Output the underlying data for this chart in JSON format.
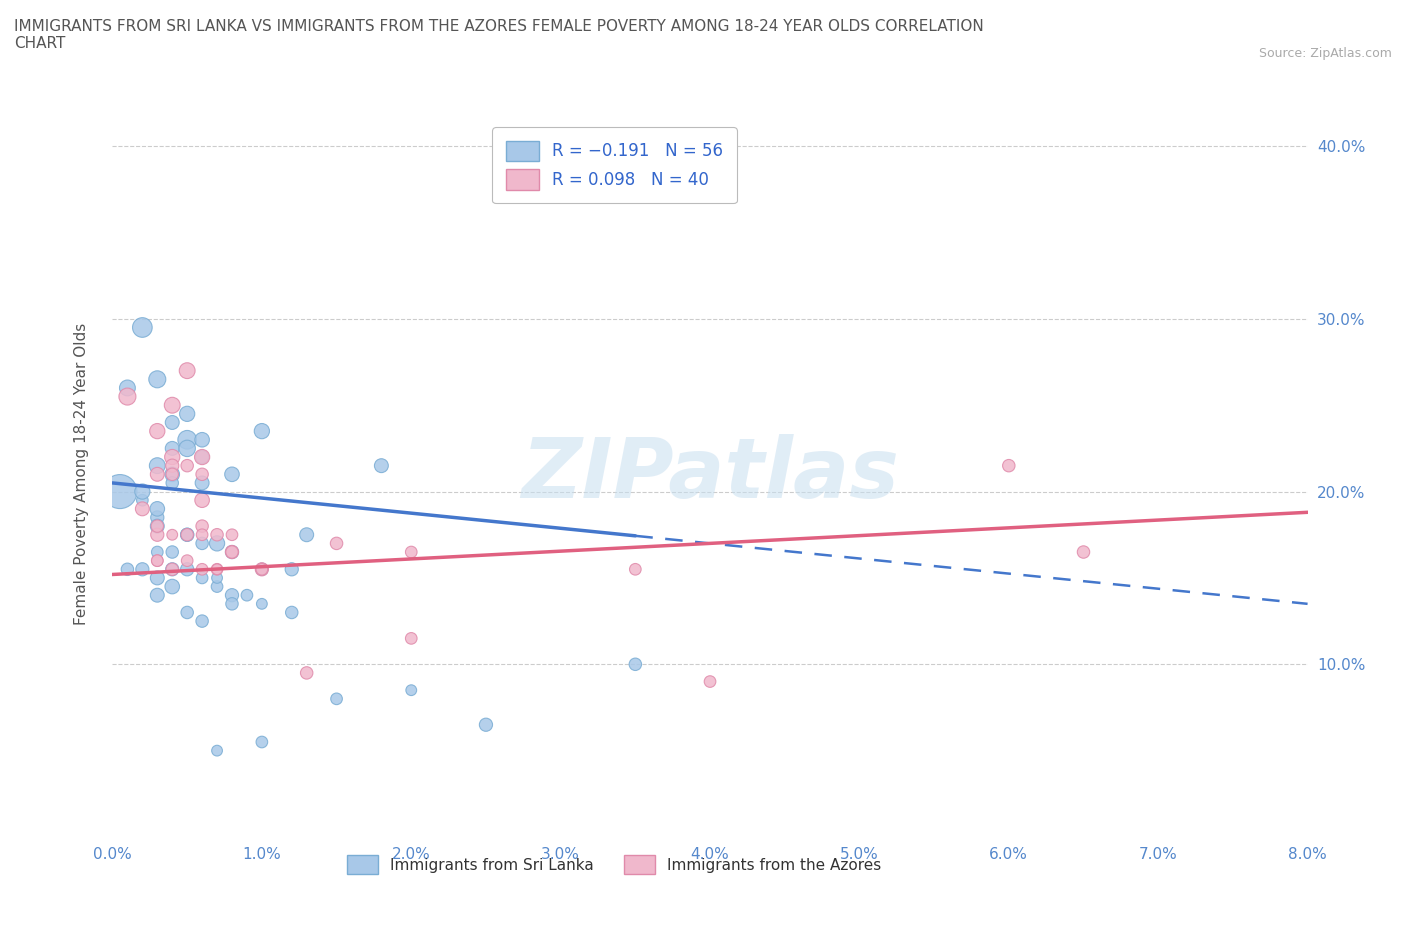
{
  "title": "IMMIGRANTS FROM SRI LANKA VS IMMIGRANTS FROM THE AZORES FEMALE POVERTY AMONG 18-24 YEAR OLDS CORRELATION\nCHART",
  "source_text": "Source: ZipAtlas.com",
  "ylabel": "Female Poverty Among 18-24 Year Olds",
  "xlim": [
    0.0,
    0.08
  ],
  "ylim": [
    0.0,
    0.42
  ],
  "xticks": [
    0.0,
    0.01,
    0.02,
    0.03,
    0.04,
    0.05,
    0.06,
    0.07,
    0.08
  ],
  "yticks": [
    0.1,
    0.2,
    0.3,
    0.4
  ],
  "xticklabels": [
    "0.0%",
    "1.0%",
    "2.0%",
    "3.0%",
    "4.0%",
    "5.0%",
    "6.0%",
    "7.0%",
    "8.0%"
  ],
  "yticklabels_right": [
    "10.0%",
    "20.0%",
    "30.0%",
    "40.0%"
  ],
  "sri_lanka_color": "#a8c8e8",
  "sri_lanka_edge": "#7aadd4",
  "azores_color": "#f0b8cc",
  "azores_edge": "#e08aaa",
  "tick_color": "#5588cc",
  "watermark": "ZIPatlas",
  "sl_line_color": "#4477cc",
  "sl_line_solid_end": 0.035,
  "az_line_color": "#e06080",
  "sl_line_y0": 0.205,
  "sl_line_y1": 0.135,
  "sl_line_x0": 0.0,
  "sl_line_x1": 0.08,
  "az_line_y0": 0.152,
  "az_line_y1": 0.188,
  "az_line_x0": 0.0,
  "az_line_x1": 0.08,
  "sri_lanka_x": [
    0.0005,
    0.002,
    0.003,
    0.005,
    0.005,
    0.004,
    0.006,
    0.003,
    0.004,
    0.005,
    0.004,
    0.002,
    0.001,
    0.003,
    0.004,
    0.006,
    0.007,
    0.004,
    0.005,
    0.006,
    0.008,
    0.01,
    0.013,
    0.008,
    0.018,
    0.002,
    0.003,
    0.003,
    0.005,
    0.006,
    0.003,
    0.001,
    0.002,
    0.003,
    0.004,
    0.005,
    0.006,
    0.007,
    0.008,
    0.01,
    0.012,
    0.003,
    0.004,
    0.005,
    0.006,
    0.007,
    0.008,
    0.009,
    0.01,
    0.012,
    0.015,
    0.02,
    0.025,
    0.035,
    0.01,
    0.007
  ],
  "sri_lanka_y": [
    0.2,
    0.295,
    0.265,
    0.245,
    0.23,
    0.225,
    0.22,
    0.215,
    0.21,
    0.225,
    0.205,
    0.195,
    0.26,
    0.185,
    0.24,
    0.23,
    0.17,
    0.165,
    0.175,
    0.205,
    0.21,
    0.235,
    0.175,
    0.165,
    0.215,
    0.2,
    0.19,
    0.18,
    0.175,
    0.17,
    0.165,
    0.155,
    0.155,
    0.15,
    0.145,
    0.155,
    0.125,
    0.145,
    0.14,
    0.155,
    0.155,
    0.14,
    0.155,
    0.13,
    0.15,
    0.15,
    0.135,
    0.14,
    0.135,
    0.13,
    0.08,
    0.085,
    0.065,
    0.1,
    0.055,
    0.05
  ],
  "sri_lanka_sizes": [
    600,
    200,
    150,
    120,
    180,
    100,
    90,
    130,
    110,
    140,
    80,
    70,
    130,
    90,
    100,
    110,
    120,
    80,
    90,
    100,
    110,
    120,
    100,
    90,
    100,
    120,
    110,
    100,
    90,
    80,
    70,
    80,
    90,
    100,
    110,
    90,
    80,
    70,
    90,
    80,
    90,
    100,
    90,
    80,
    70,
    60,
    80,
    70,
    60,
    80,
    70,
    60,
    90,
    80,
    70,
    60
  ],
  "azores_x": [
    0.001,
    0.004,
    0.003,
    0.005,
    0.006,
    0.004,
    0.006,
    0.003,
    0.002,
    0.004,
    0.005,
    0.006,
    0.004,
    0.005,
    0.008,
    0.006,
    0.01,
    0.015,
    0.02,
    0.035,
    0.003,
    0.004,
    0.006,
    0.007,
    0.008,
    0.007,
    0.003,
    0.005,
    0.008,
    0.01,
    0.013,
    0.003,
    0.004,
    0.003,
    0.006,
    0.007,
    0.065,
    0.04,
    0.02,
    0.06
  ],
  "azores_y": [
    0.255,
    0.25,
    0.235,
    0.27,
    0.22,
    0.22,
    0.195,
    0.21,
    0.19,
    0.215,
    0.215,
    0.18,
    0.21,
    0.175,
    0.165,
    0.21,
    0.155,
    0.17,
    0.165,
    0.155,
    0.175,
    0.155,
    0.175,
    0.155,
    0.165,
    0.175,
    0.16,
    0.16,
    0.175,
    0.155,
    0.095,
    0.16,
    0.175,
    0.18,
    0.155,
    0.155,
    0.165,
    0.09,
    0.115,
    0.215
  ],
  "azores_sizes": [
    150,
    130,
    120,
    130,
    120,
    120,
    110,
    100,
    100,
    90,
    80,
    80,
    80,
    80,
    90,
    80,
    90,
    80,
    70,
    70,
    90,
    80,
    70,
    70,
    80,
    80,
    70,
    70,
    70,
    70,
    80,
    70,
    60,
    80,
    70,
    60,
    80,
    70,
    70,
    80
  ]
}
